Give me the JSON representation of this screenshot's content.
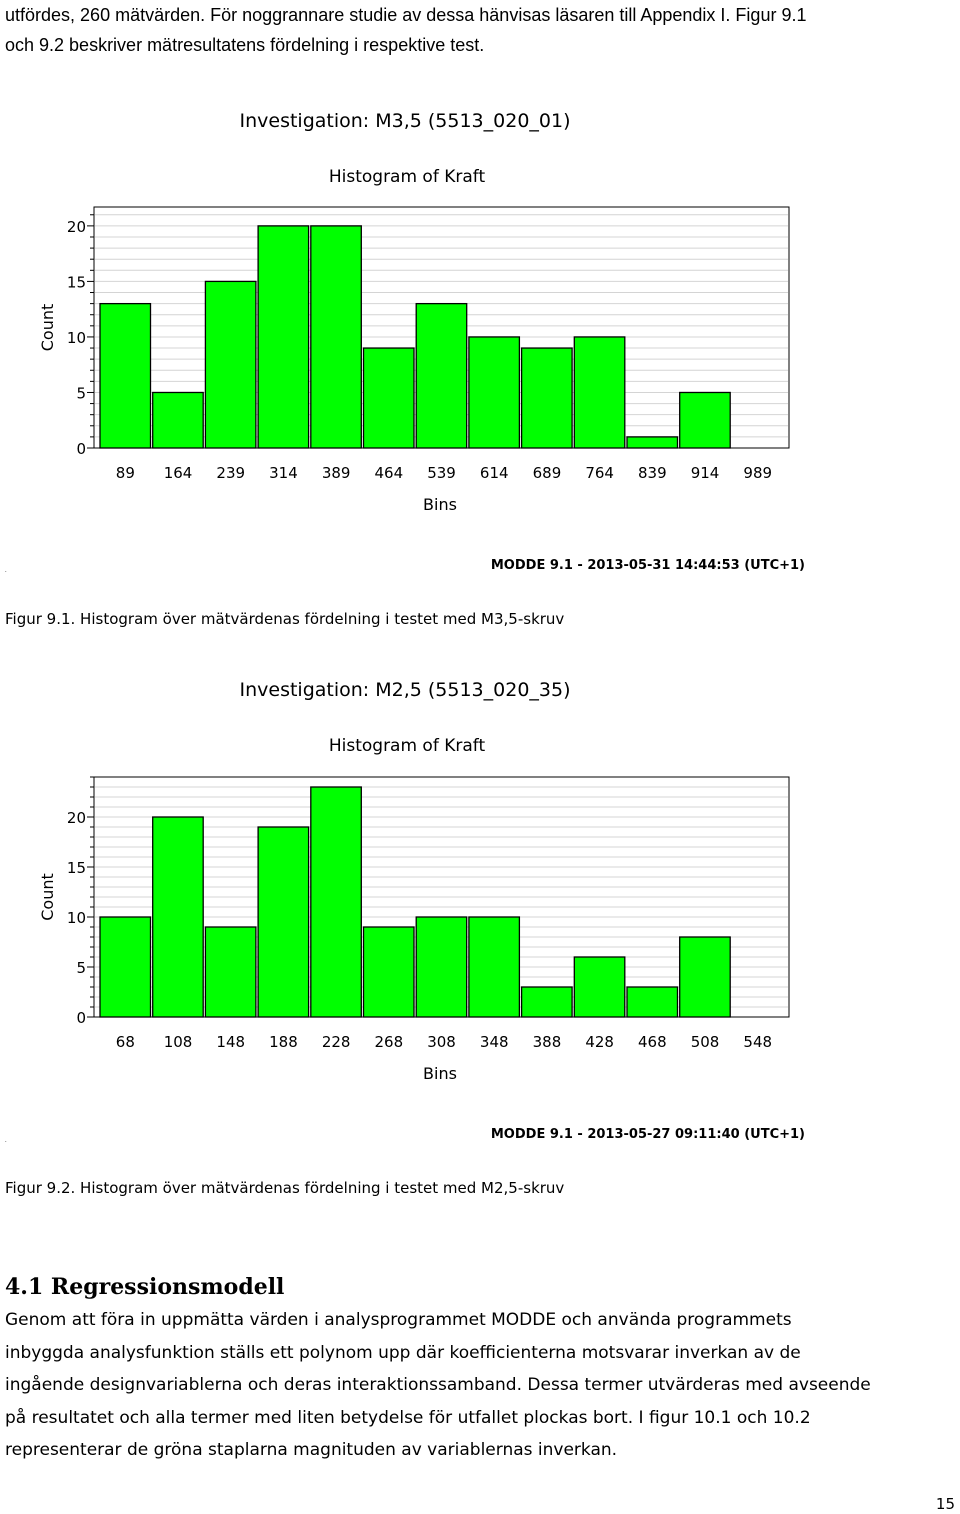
{
  "intro": {
    "lines": [
      "utfördes, 260 mätvärden. För noggrannare studie av dessa hänvisas läsaren till Appendix I. Figur 9.1",
      "och 9.2 beskriver mätresultatens fördelning i respektive test."
    ]
  },
  "figure1": {
    "dot": ".",
    "caption": "Figur 9.1. Histogram över mätvärdenas fördelning i testet med M3,5-skruv"
  },
  "figure2": {
    "dot": ".",
    "caption": "Figur 9.2. Histogram över mätvärdenas fördelning i testet med M2,5-skruv"
  },
  "section": {
    "heading": "4.1  Regressionsmodell",
    "paragraph_lines": [
      "Genom att föra in uppmätta värden i analysprogrammet MODDE och använda programmets",
      "inbyggda analysfunktion ställs ett polynom upp där koefficienterna motsvarar inverkan av de",
      "ingående designvariablerna och deras interaktionssamband. Dessa termer utvärderas med avseende",
      "på resultatet och alla termer med liten betydelse för utfallet plockas bort. I figur 10.1 och 10.2",
      "representerar de gröna staplarna magnituden av variablernas inverkan."
    ]
  },
  "page_number": "15",
  "chart_data": [
    {
      "type": "bar",
      "title": "Investigation: M3,5 (5513_020_01)",
      "subtitle": "Histogram of Kraft",
      "xlabel": "Bins",
      "ylabel": "Count",
      "footer": "MODDE 9.1 - 2013-05-31 14:44:53 (UTC+1)",
      "categories": [
        "89",
        "164",
        "239",
        "314",
        "389",
        "464",
        "539",
        "614",
        "689",
        "764",
        "839",
        "914",
        "989"
      ],
      "values": [
        13,
        5,
        15,
        20,
        20,
        9,
        13,
        10,
        9,
        10,
        1,
        5,
        0
      ],
      "yticks": [
        0,
        5,
        10,
        15,
        20
      ],
      "ylim": [
        0,
        21.7
      ],
      "grid": true,
      "bar_color": "#00ff00",
      "legend": "none"
    },
    {
      "type": "bar",
      "title": "Investigation: M2,5 (5513_020_35)",
      "subtitle": "Histogram of Kraft",
      "xlabel": "Bins",
      "ylabel": "Count",
      "footer": "MODDE 9.1 - 2013-05-27 09:11:40 (UTC+1)",
      "categories": [
        "68",
        "108",
        "148",
        "188",
        "228",
        "268",
        "308",
        "348",
        "388",
        "428",
        "468",
        "508",
        "548"
      ],
      "values": [
        10,
        20,
        9,
        19,
        23,
        9,
        10,
        10,
        3,
        6,
        3,
        8,
        0
      ],
      "yticks": [
        0,
        5,
        10,
        15,
        20
      ],
      "ylim": [
        0,
        24
      ],
      "grid": true,
      "bar_color": "#00ff00",
      "legend": "none"
    }
  ]
}
